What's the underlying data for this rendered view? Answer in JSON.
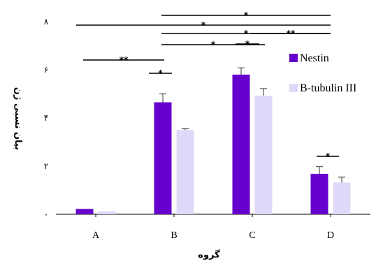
{
  "chart_data": {
    "type": "bar",
    "title": "",
    "xlabel": "گروه",
    "ylabel": "بیان نسبی ژن",
    "categories": [
      "A",
      "B",
      "C",
      "D"
    ],
    "ylim": [
      0,
      8
    ],
    "yticks": [
      {
        "value": 0,
        "label": "۰"
      },
      {
        "value": 2,
        "label": "۲"
      },
      {
        "value": 4,
        "label": "۴"
      },
      {
        "value": 6,
        "label": "۶"
      },
      {
        "value": 8,
        "label": "۸"
      }
    ],
    "grid": false,
    "legend_position": "right",
    "series": [
      {
        "name": "Nestin",
        "color": "#6600CC",
        "values": [
          0.22,
          4.65,
          5.8,
          1.68
        ],
        "errors": [
          0,
          0.35,
          0.28,
          0.3
        ]
      },
      {
        "name": "B-tubulin III",
        "color": "#E0D8F8",
        "values": [
          0.12,
          3.5,
          4.92,
          1.32
        ],
        "errors": [
          0,
          0.05,
          0.3,
          0.22
        ]
      }
    ],
    "significance": [
      {
        "from": 1,
        "to": 3,
        "label": "*"
      },
      {
        "from": 0,
        "to": 3,
        "label": "*"
      },
      {
        "from": 1,
        "to": 3,
        "label": "*"
      },
      {
        "from": 1,
        "to": 2,
        "label": "*"
      },
      {
        "from": 2,
        "to": 3,
        "label": "**"
      },
      {
        "from": 0,
        "to": 1,
        "label": "**"
      },
      {
        "from": 1,
        "to": 1,
        "label": "*"
      },
      {
        "from": 2,
        "to": 2,
        "label": "*"
      },
      {
        "from": 3,
        "to": 3,
        "label": "*"
      }
    ]
  }
}
